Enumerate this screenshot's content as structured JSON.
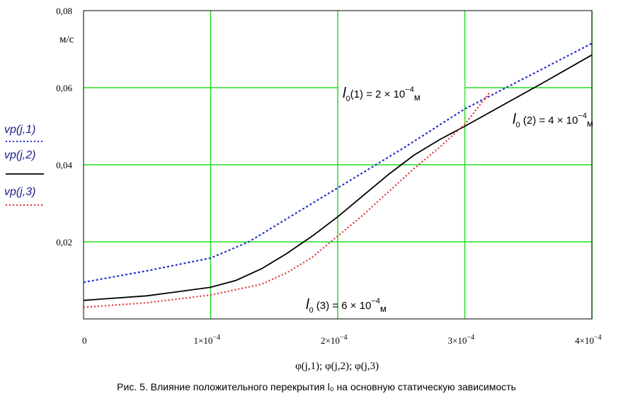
{
  "chart_data": {
    "type": "line",
    "x_ticks": [
      "0",
      "1×10",
      "2×10",
      "3×10",
      "4×10"
    ],
    "x_tick_exp": "−4",
    "x_tick_values": [
      0,
      0.0001,
      0.0002,
      0.0003,
      0.0004
    ],
    "y_ticks": [
      "0,02",
      "0,04",
      "0,06",
      "0,08"
    ],
    "y_tick_values": [
      0.02,
      0.04,
      0.06,
      0.08
    ],
    "xlabel": "φ(j,1); φ(j,2); φ(j,3)",
    "ylabel": "м/с",
    "xlim": [
      0,
      0.0004
    ],
    "ylim": [
      0,
      0.08
    ],
    "grid": true,
    "grid_color": "#22dd22",
    "series": [
      {
        "name": "vp(j,1)",
        "color": "#2233cc",
        "dash": "dotted",
        "x": [
          0,
          5e-05,
          0.0001,
          0.00013,
          0.00016,
          0.0002,
          0.00025,
          0.0003,
          0.00035,
          0.0004
        ],
        "y": [
          0.0095,
          0.0125,
          0.0158,
          0.02,
          0.026,
          0.034,
          0.044,
          0.0545,
          0.063,
          0.0715
        ]
      },
      {
        "name": "vp(j,2)",
        "color": "#000000",
        "dash": "solid",
        "x": [
          0,
          5e-05,
          0.0001,
          0.00012,
          0.00014,
          0.00016,
          0.00018,
          0.0002,
          0.00022,
          0.00024,
          0.00026,
          0.00028,
          0.0003,
          0.00033,
          0.00036,
          0.0004
        ],
        "y": [
          0.0048,
          0.006,
          0.0082,
          0.01,
          0.013,
          0.017,
          0.0215,
          0.0265,
          0.032,
          0.0375,
          0.0425,
          0.0465,
          0.05,
          0.0555,
          0.061,
          0.0685
        ]
      },
      {
        "name": "vp(j,3)",
        "color": "#dd3333",
        "dash": "dotted",
        "x": [
          0,
          5e-05,
          0.0001,
          0.00014,
          0.00016,
          0.00018,
          0.0002,
          0.00022,
          0.00024,
          0.00026,
          0.00028,
          0.0003,
          0.00032
        ],
        "y": [
          0.003,
          0.0042,
          0.0062,
          0.009,
          0.012,
          0.016,
          0.0215,
          0.027,
          0.033,
          0.039,
          0.0445,
          0.0505,
          0.059
        ]
      }
    ],
    "legend": {
      "placement": "left",
      "entries": [
        {
          "label": "vp(j,1)",
          "color": "#2233cc",
          "dash": "dotted"
        },
        {
          "label": "vp(j,2)",
          "color": "#000000",
          "dash": "solid"
        },
        {
          "label": "vp(j,3)",
          "color": "#dd3333",
          "dash": "dotted"
        }
      ]
    },
    "annotations": [
      {
        "main": "l",
        "sub": "0",
        "text": "(1) = 2 × 10",
        "exp": "−4",
        "unit": "м"
      },
      {
        "main": "l",
        "sub": "0",
        "text": " (2) = 4 × 10",
        "exp": "−4",
        "unit": "м"
      },
      {
        "main": "l",
        "sub": "0",
        "text": " (3) = 6 × 10",
        "exp": "−4",
        "unit": "м"
      }
    ],
    "caption": "Рис. 5. Влияние положительного перекрытия l₀ на основную статическую зависимость"
  }
}
